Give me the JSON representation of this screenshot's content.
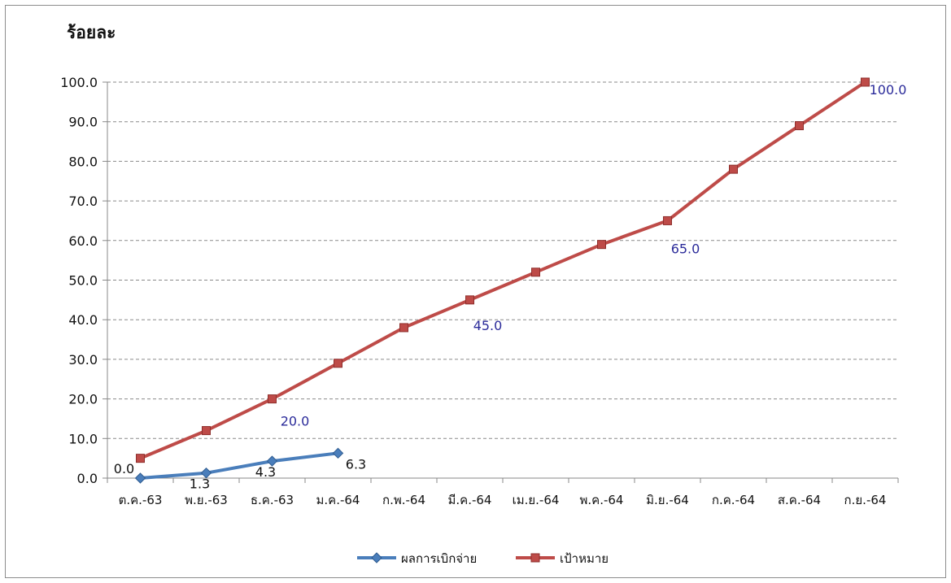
{
  "chart_data": {
    "type": "line",
    "ylabel": "ร้อยละ",
    "ylim": [
      0,
      100
    ],
    "yticks": [
      "0.0",
      "10.0",
      "20.0",
      "30.0",
      "40.0",
      "50.0",
      "60.0",
      "70.0",
      "80.0",
      "90.0",
      "100.0"
    ],
    "grid": true,
    "legend_position": "bottom",
    "categories": [
      "ต.ค.-63",
      "พ.ย.-63",
      "ธ.ค.-63",
      "ม.ค.-64",
      "ก.พ.-64",
      "มี.ค.-64",
      "เม.ย.-64",
      "พ.ค.-64",
      "มิ.ย.-64",
      "ก.ค.-64",
      "ส.ค.-64",
      "ก.ย.-64"
    ],
    "series": [
      {
        "name": "ผลการเบิกจ่าย",
        "color": "#4a7ebb",
        "marker": "diamond",
        "values": [
          0.0,
          1.3,
          4.3,
          6.3,
          null,
          null,
          null,
          null,
          null,
          null,
          null,
          null
        ],
        "labels": [
          "0.0",
          "1.3",
          "4.3",
          "6.3",
          "",
          "",
          "",
          "",
          "",
          "",
          "",
          ""
        ]
      },
      {
        "name": "เป้าหมาย",
        "color": "#be4b48",
        "marker": "square",
        "values": [
          5,
          12,
          20,
          29,
          38,
          45,
          52,
          59,
          65,
          78,
          89,
          100
        ],
        "labels": [
          "",
          "",
          "20.0",
          "",
          "",
          "45.0",
          "",
          "",
          "65.0",
          "",
          "",
          "100.0"
        ]
      }
    ]
  }
}
